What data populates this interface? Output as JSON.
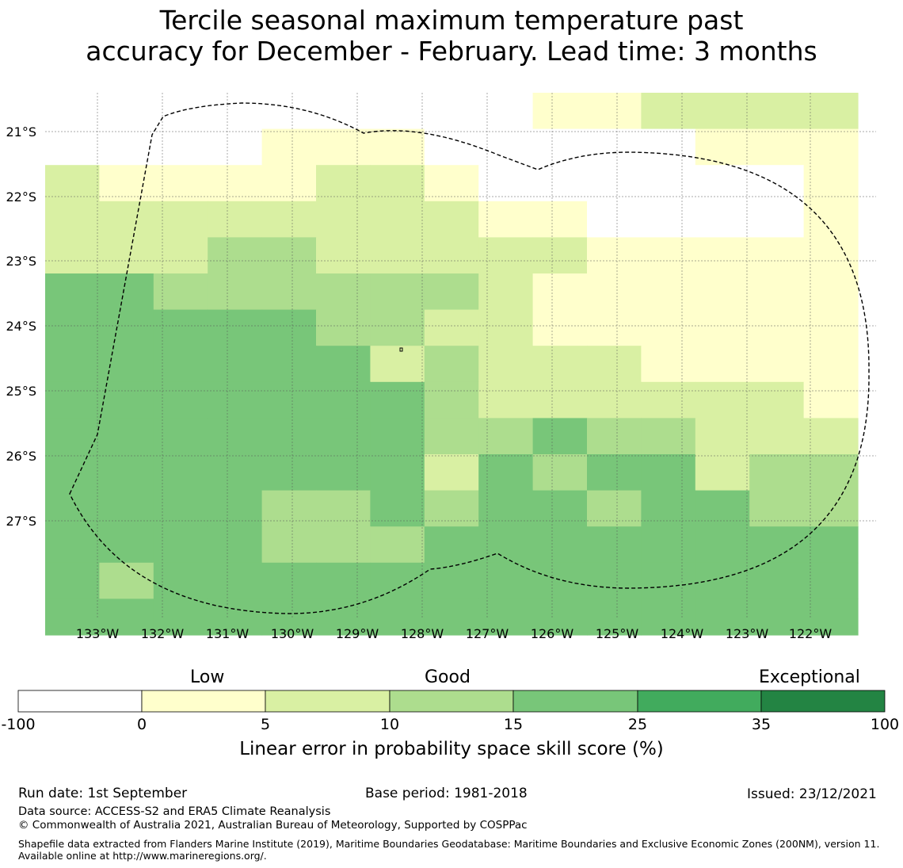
{
  "title": {
    "line1": "Tercile seasonal maximum temperature past",
    "line2": "accuracy for December - February. Lead time: 3 months"
  },
  "map": {
    "lat_labels": [
      "21°S",
      "22°S",
      "23°S",
      "24°S",
      "25°S",
      "26°S",
      "27°S"
    ],
    "lon_labels": [
      "133°W",
      "132°W",
      "131°W",
      "130°W",
      "129°W",
      "128°W",
      "127°W",
      "126°W",
      "125°W",
      "124°W",
      "123°W",
      "122°W"
    ],
    "boundary_style": "dashed black line",
    "grid": true,
    "cells": [
      [
        0,
        0,
        0,
        0,
        0,
        0,
        0,
        0,
        0,
        1,
        1,
        2,
        2,
        2,
        2
      ],
      [
        0,
        0,
        0,
        0,
        1,
        1,
        1,
        0,
        0,
        0,
        0,
        0,
        1,
        1,
        1
      ],
      [
        2,
        1,
        1,
        1,
        1,
        2,
        2,
        1,
        0,
        0,
        0,
        0,
        0,
        0,
        1
      ],
      [
        2,
        2,
        2,
        2,
        2,
        2,
        2,
        2,
        1,
        1,
        0,
        0,
        0,
        0,
        1
      ],
      [
        2,
        2,
        2,
        3,
        3,
        2,
        2,
        2,
        2,
        2,
        1,
        1,
        1,
        1,
        1
      ],
      [
        4,
        4,
        3,
        3,
        3,
        3,
        3,
        3,
        2,
        1,
        1,
        1,
        1,
        1,
        1
      ],
      [
        4,
        4,
        4,
        4,
        4,
        3,
        3,
        2,
        2,
        1,
        1,
        1,
        1,
        1,
        1
      ],
      [
        4,
        4,
        4,
        4,
        4,
        4,
        2,
        3,
        2,
        2,
        2,
        1,
        1,
        1,
        1
      ],
      [
        4,
        4,
        4,
        4,
        4,
        4,
        4,
        3,
        2,
        2,
        2,
        2,
        2,
        2,
        1
      ],
      [
        4,
        4,
        4,
        4,
        4,
        4,
        4,
        3,
        3,
        4,
        3,
        3,
        2,
        2,
        2
      ],
      [
        4,
        4,
        4,
        4,
        4,
        4,
        4,
        2,
        4,
        3,
        4,
        4,
        2,
        3,
        3
      ],
      [
        4,
        4,
        4,
        4,
        3,
        3,
        4,
        3,
        4,
        4,
        3,
        4,
        4,
        3,
        3
      ],
      [
        4,
        4,
        4,
        4,
        3,
        3,
        3,
        4,
        4,
        4,
        4,
        4,
        4,
        4,
        4
      ],
      [
        4,
        3,
        4,
        4,
        4,
        4,
        4,
        4,
        4,
        4,
        4,
        4,
        4,
        4,
        4
      ],
      [
        4,
        4,
        4,
        4,
        4,
        4,
        4,
        4,
        4,
        4,
        4,
        4,
        4,
        4,
        4
      ]
    ]
  },
  "legend": {
    "categories": [
      "Low",
      "Good",
      "Exceptional"
    ],
    "ticks": [
      "-100",
      "0",
      "5",
      "10",
      "15",
      "25",
      "35",
      "100"
    ],
    "colors": [
      "#ffffff",
      "#ffffcc",
      "#d9f0a3",
      "#addd8e",
      "#78c679",
      "#41ab5d",
      "#238443"
    ],
    "title": "Linear error in probability space skill score (%)"
  },
  "footer": {
    "run_date": "Run date: 1st September",
    "base_period": "Base period: 1981-2018",
    "issued": "Issued: 23/12/2021",
    "data_source": "Data source: ACCESS-S2 and ERA5 Climate Reanalysis",
    "copyright": "© Commonwealth of Australia 2021, Australian Bureau of Meteorology, Supported by COSPPac",
    "shapefile": "Shapefile data extracted from Flanders Marine Institute (2019), Maritime Boundaries Geodatabase: Maritime Boundaries and Exclusive Economic Zones (200NM), version 11. Available online at http://www.marineregions.org/."
  }
}
